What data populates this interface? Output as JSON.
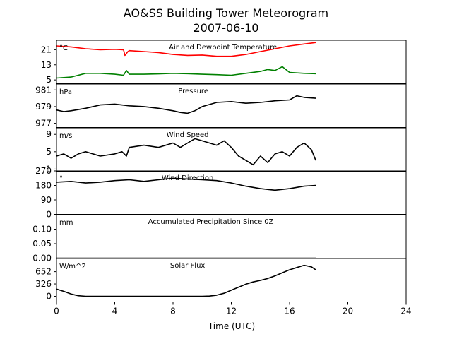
{
  "chart_data": {
    "type": "line",
    "title": "AO&SS Building Tower Meteorogram",
    "subtitle": "2007-06-10",
    "xlabel": "Time (UTC)",
    "xlim": [
      0,
      24
    ],
    "xticks": [
      0,
      4,
      8,
      12,
      16,
      20,
      24
    ],
    "xtick_labels": [
      "0",
      "4",
      "8",
      "12",
      "16",
      "20",
      "24"
    ],
    "panels": [
      {
        "id": "temp",
        "title": "Air and Dewpoint Temperature",
        "unit": "°C",
        "ylim": [
          3,
          26
        ],
        "yticks": [
          5,
          13,
          21
        ],
        "ytick_labels": [
          "5",
          "13",
          "21"
        ],
        "series": [
          {
            "name": "Air Temperature",
            "color": "#ff0000",
            "x": [
              0,
              1,
              2,
              3,
              4,
              4.6,
              4.7,
              4.9,
              5,
              6,
              7,
              8,
              9,
              10,
              11,
              12,
              13,
              14,
              15,
              16,
              17,
              17.8
            ],
            "y": [
              23,
              22.5,
              21.5,
              21,
              21.2,
              21,
              18,
              20,
              20.5,
              20,
              19.5,
              18.5,
              18,
              18.2,
              17.5,
              17.5,
              18.5,
              20,
              21.5,
              23,
              24,
              24.8
            ]
          },
          {
            "name": "Dewpoint Temperature",
            "color": "#008000",
            "x": [
              0,
              1,
              2,
              3,
              4,
              4.6,
              4.8,
              5,
              6,
              7,
              8,
              9,
              10,
              11,
              12,
              13,
              14,
              14.5,
              15,
              15.5,
              16,
              17,
              17.8
            ],
            "y": [
              6,
              6.5,
              8.5,
              8.5,
              8,
              7.5,
              10,
              8,
              8,
              8.2,
              8.5,
              8.3,
              8,
              7.8,
              7.5,
              8.5,
              9.5,
              10.5,
              10,
              12,
              9,
              8.5,
              8.3
            ]
          }
        ]
      },
      {
        "id": "pressure",
        "title": "Pressure",
        "unit": "hPa",
        "ylim": [
          976.5,
          981.7
        ],
        "yticks": [
          977,
          979,
          981
        ],
        "ytick_labels": [
          "977",
          "979",
          "981"
        ],
        "series": [
          {
            "name": "Pressure",
            "color": "#000000",
            "x": [
              0,
              0.5,
              1,
              2,
              3,
              4,
              5,
              6,
              7,
              8,
              8.5,
              9,
              9.5,
              10,
              11,
              12,
              13,
              14,
              15,
              16,
              16.5,
              17,
              17.8
            ],
            "y": [
              978.6,
              978.4,
              978.5,
              978.8,
              979.2,
              979.3,
              979.1,
              979,
              978.8,
              978.5,
              978.3,
              978.2,
              978.5,
              979,
              979.5,
              979.6,
              979.4,
              979.5,
              979.7,
              979.8,
              980.3,
              980.1,
              980.0
            ]
          }
        ]
      },
      {
        "id": "wind_speed",
        "title": "Wind Speed",
        "unit": "m/s",
        "ylim": [
          0.5,
          10.5
        ],
        "yticks": [
          1,
          5,
          9
        ],
        "ytick_labels": [
          "1",
          "5",
          "9"
        ],
        "series": [
          {
            "name": "Wind Speed",
            "color": "#000000",
            "x": [
              0,
              0.5,
              1,
              1.5,
              2,
              3,
              4,
              4.5,
              4.8,
              5,
              6,
              7,
              8,
              8.5,
              9,
              9.5,
              10,
              10.5,
              11,
              11.5,
              12,
              12.5,
              13,
              13.5,
              14,
              14.5,
              15,
              15.5,
              16,
              16.5,
              17,
              17.5,
              17.8
            ],
            "y": [
              4,
              4.5,
              3.5,
              4.5,
              5,
              4,
              4.5,
              5,
              4,
              6,
              6.5,
              6,
              7,
              6,
              7,
              8,
              7.5,
              7,
              6.5,
              7.5,
              6,
              4,
              3,
              2,
              4,
              2.5,
              4.5,
              5,
              4,
              6,
              7,
              5.5,
              3
            ]
          }
        ]
      },
      {
        "id": "wind_dir",
        "title": "Wind Direction",
        "unit": "°",
        "ylim": [
          0,
          270
        ],
        "yticks": [
          0,
          90,
          180,
          270
        ],
        "ytick_labels": [
          "0",
          "90",
          "180",
          "270"
        ],
        "series": [
          {
            "name": "Wind Direction",
            "color": "#000000",
            "x": [
              0,
              1,
              2,
              3,
              4,
              5,
              6,
              7,
              8,
              9,
              10,
              11,
              12,
              13,
              14,
              15,
              16,
              17,
              17.8
            ],
            "y": [
              200,
              205,
              195,
              200,
              210,
              215,
              205,
              215,
              225,
              220,
              215,
              210,
              195,
              175,
              160,
              150,
              160,
              175,
              180
            ]
          }
        ]
      },
      {
        "id": "precip",
        "title": "Accumulated Precipitation Since 0Z",
        "unit": "mm",
        "ylim": [
          0,
          0.15
        ],
        "yticks": [
          0.0,
          0.05,
          0.1
        ],
        "ytick_labels": [
          "0.00",
          "0.05",
          "0.10"
        ],
        "series": [
          {
            "name": "Accumulated Precipitation",
            "color": "#000000",
            "x": [
              0,
              17.8
            ],
            "y": [
              0,
              0
            ]
          }
        ]
      },
      {
        "id": "solar",
        "title": "Solar Flux",
        "unit": "W/m^2",
        "ylim": [
          -150,
          1000
        ],
        "yticks": [
          0,
          326,
          652
        ],
        "ytick_labels": [
          "0",
          "326",
          "652"
        ],
        "series": [
          {
            "name": "Solar Flux",
            "color": "#000000",
            "x": [
              0,
              0.5,
              1,
              1.5,
              2,
              3,
              4,
              5,
              6,
              7,
              8,
              9,
              10,
              10.5,
              11,
              11.5,
              12,
              12.5,
              13,
              13.5,
              14,
              14.5,
              15,
              15.5,
              16,
              16.5,
              17,
              17.5,
              17.8
            ],
            "y": [
              190,
              130,
              60,
              15,
              0,
              0,
              0,
              0,
              0,
              0,
              0,
              0,
              0,
              5,
              30,
              80,
              160,
              240,
              320,
              380,
              420,
              470,
              540,
              620,
              700,
              760,
              820,
              780,
              700
            ]
          }
        ]
      }
    ]
  }
}
